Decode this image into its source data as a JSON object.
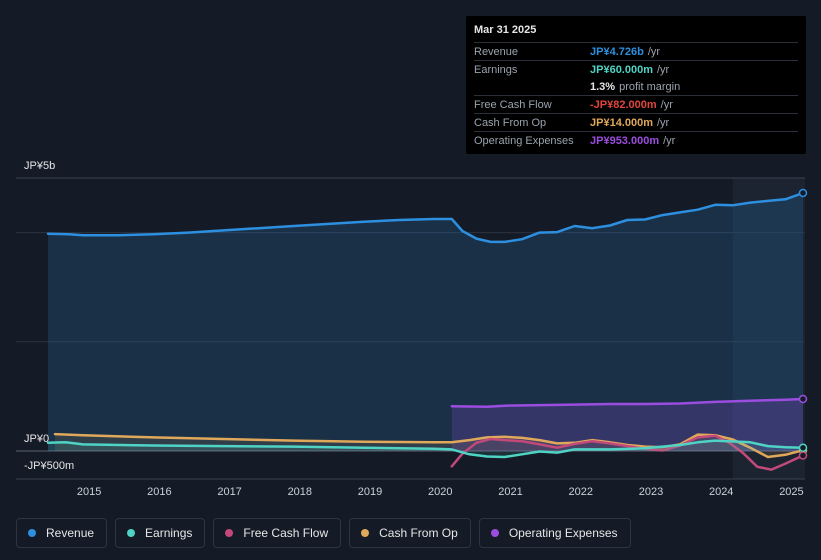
{
  "colors": {
    "revenue": "#2d8fe0",
    "earnings": "#4fd3c4",
    "free_cash_flow": "#c2497a",
    "cash_from_op": "#e0a85a",
    "operating_expenses": "#9b4de0",
    "negative": "#e0453d"
  },
  "tooltip": {
    "date": "Mar 31 2025",
    "rows": [
      {
        "label": "Revenue",
        "value": "JP¥4.726b",
        "unit": "/yr"
      },
      {
        "label": "Earnings",
        "value": "JP¥60.000m",
        "unit": "/yr"
      },
      {
        "label": "",
        "value": "1.3%",
        "unit": "profit margin"
      },
      {
        "label": "Free Cash Flow",
        "value": "-JP¥82.000m",
        "unit": "/yr"
      },
      {
        "label": "Cash From Op",
        "value": "JP¥14.000m",
        "unit": "/yr"
      },
      {
        "label": "Operating Expenses",
        "value": "JP¥953.000m",
        "unit": "/yr"
      }
    ]
  },
  "legend": [
    {
      "label": "Revenue",
      "key": "revenue"
    },
    {
      "label": "Earnings",
      "key": "earnings"
    },
    {
      "label": "Free Cash Flow",
      "key": "free_cash_flow"
    },
    {
      "label": "Cash From Op",
      "key": "cash_from_op"
    },
    {
      "label": "Operating Expenses",
      "key": "operating_expenses"
    }
  ],
  "chart_data": {
    "type": "line",
    "title": "",
    "units": "JP¥ millions",
    "y_axis_labels": [
      "JP¥5b",
      "JP¥0",
      "-JP¥500m"
    ],
    "ylim": [
      -500,
      5000
    ],
    "xlim": [
      2014.5,
      2025.25
    ],
    "x_ticks": [
      2015,
      2016,
      2017,
      2018,
      2019,
      2020,
      2021,
      2022,
      2023,
      2024,
      2025
    ],
    "highlight_range": [
      2024.25,
      2025.25
    ],
    "series": [
      {
        "name": "Revenue",
        "key": "revenue",
        "fill": true,
        "x": [
          2014.5,
          2014.8,
          2015.0,
          2015.5,
          2016.0,
          2016.5,
          2017.0,
          2017.5,
          2018.0,
          2018.5,
          2019.0,
          2019.5,
          2020.0,
          2020.25,
          2020.4,
          2020.6,
          2020.8,
          2021.0,
          2021.25,
          2021.5,
          2021.75,
          2022.0,
          2022.25,
          2022.5,
          2022.75,
          2023.0,
          2023.25,
          2023.5,
          2023.75,
          2024.0,
          2024.25,
          2024.5,
          2024.75,
          2025.0,
          2025.25
        ],
        "values": [
          3980,
          3970,
          3950,
          3950,
          3970,
          4000,
          4040,
          4080,
          4120,
          4160,
          4200,
          4230,
          4250,
          4250,
          4030,
          3890,
          3830,
          3830,
          3880,
          4000,
          4010,
          4120,
          4080,
          4130,
          4230,
          4240,
          4320,
          4370,
          4420,
          4510,
          4500,
          4550,
          4580,
          4610,
          4726
        ]
      },
      {
        "name": "Operating Expenses",
        "key": "operating_expenses",
        "fill": true,
        "x": [
          2020.25,
          2020.75,
          2021.0,
          2021.5,
          2022.0,
          2022.5,
          2023.0,
          2023.5,
          2024.0,
          2024.5,
          2025.0,
          2025.25
        ],
        "values": [
          820,
          810,
          830,
          840,
          850,
          860,
          860,
          870,
          900,
          920,
          940,
          953
        ]
      },
      {
        "name": "Earnings",
        "key": "earnings",
        "x": [
          2014.5,
          2014.75,
          2015.0,
          2016.0,
          2017.0,
          2018.0,
          2019.0,
          2020.0,
          2020.25,
          2020.5,
          2020.75,
          2021.0,
          2021.25,
          2021.5,
          2021.75,
          2022.0,
          2022.5,
          2023.0,
          2023.5,
          2023.75,
          2024.0,
          2024.5,
          2024.75,
          2025.0,
          2025.25
        ],
        "values": [
          150,
          160,
          120,
          100,
          90,
          80,
          60,
          40,
          30,
          -60,
          -100,
          -110,
          -60,
          -10,
          -30,
          30,
          30,
          50,
          110,
          160,
          190,
          160,
          90,
          70,
          60
        ]
      },
      {
        "name": "Free Cash Flow",
        "key": "free_cash_flow",
        "x": [
          2020.25,
          2020.4,
          2020.6,
          2020.8,
          2021.0,
          2021.25,
          2021.5,
          2021.75,
          2022.0,
          2022.25,
          2022.5,
          2022.75,
          2023.0,
          2023.25,
          2023.5,
          2023.75,
          2024.0,
          2024.2,
          2024.4,
          2024.6,
          2024.8,
          2025.0,
          2025.25
        ],
        "values": [
          -280,
          -50,
          150,
          220,
          200,
          180,
          120,
          60,
          130,
          180,
          140,
          90,
          40,
          10,
          100,
          250,
          280,
          150,
          -40,
          -290,
          -340,
          -230,
          -82
        ]
      },
      {
        "name": "Cash From Op",
        "key": "cash_from_op",
        "x": [
          2014.6,
          2015.0,
          2016.0,
          2017.0,
          2018.0,
          2019.0,
          2020.0,
          2020.25,
          2020.5,
          2020.75,
          2021.0,
          2021.25,
          2021.5,
          2021.75,
          2022.0,
          2022.25,
          2022.5,
          2022.75,
          2023.0,
          2023.25,
          2023.5,
          2023.75,
          2024.0,
          2024.25,
          2024.5,
          2024.75,
          2025.0,
          2025.25
        ],
        "values": [
          310,
          290,
          250,
          220,
          190,
          170,
          160,
          160,
          200,
          250,
          260,
          240,
          200,
          140,
          150,
          200,
          160,
          110,
          80,
          70,
          120,
          300,
          290,
          210,
          60,
          -110,
          -70,
          14
        ]
      }
    ]
  }
}
